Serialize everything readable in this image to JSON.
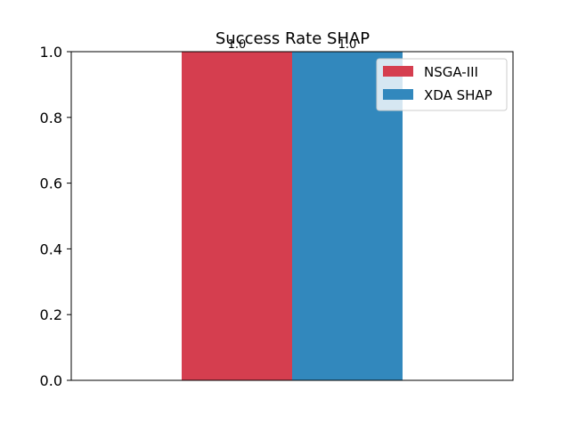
{
  "chart_data": {
    "type": "bar",
    "title": "Success Rate SHAP",
    "xlabel": "",
    "ylabel": "",
    "ylim": [
      0,
      1.0
    ],
    "yticks": [
      0.0,
      0.2,
      0.4,
      0.6,
      0.8,
      1.0
    ],
    "ytick_labels": [
      "0.0",
      "0.2",
      "0.4",
      "0.6",
      "0.8",
      "1.0"
    ],
    "grid": false,
    "legend_position": "top-right",
    "series": [
      {
        "name": "NSGA-III",
        "values": [
          1.0
        ],
        "value_labels": [
          "1.0"
        ],
        "color": "#d53e4f"
      },
      {
        "name": "XDA SHAP",
        "values": [
          1.0
        ],
        "value_labels": [
          "1.0"
        ],
        "color": "#3288bd"
      }
    ]
  }
}
